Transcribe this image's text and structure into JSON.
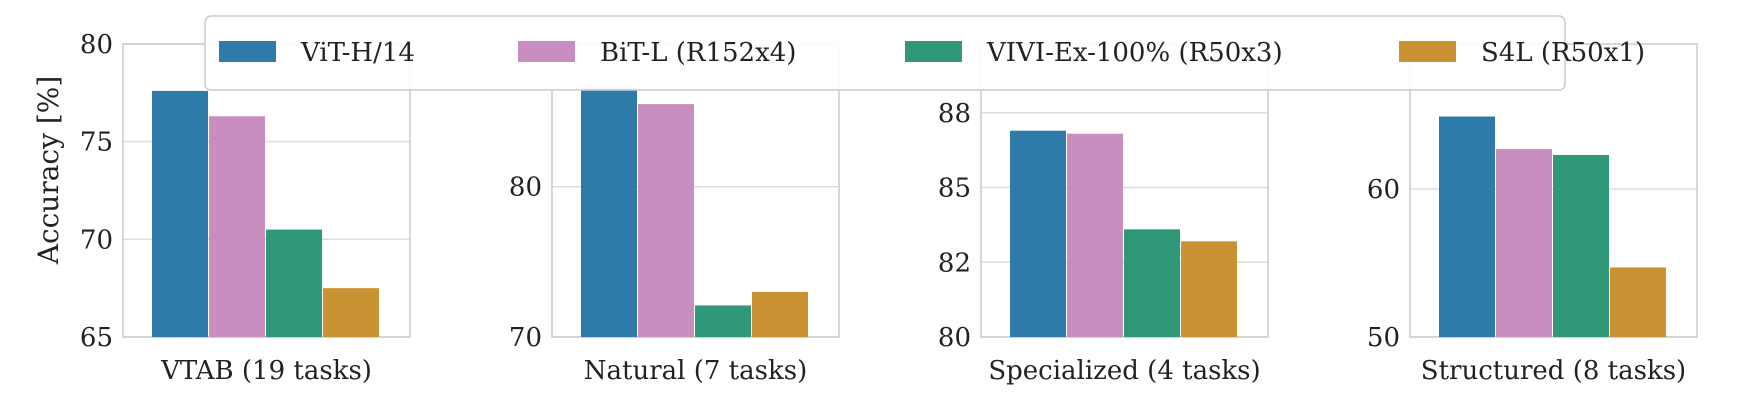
{
  "colors": {
    "ViT-H/14": "#2e7aa8",
    "BiT-L (R152x4)": "#c98ec0",
    "VIVI-Ex-100% (R50x3)": "#2e9879",
    "S4L (R50x1)": "#c99333"
  },
  "legend": {
    "entries": [
      "ViT-H/14",
      "BiT-L (R152x4)",
      "VIVI-Ex-100% (R50x3)",
      "S4L (R50x1)"
    ],
    "placement": "top-center"
  },
  "chart_data": [
    {
      "type": "bar",
      "xlabel": "VTAB (19 tasks)",
      "ylabel": "Accuracy [%]",
      "ylim": [
        65,
        80
      ],
      "yticks": [
        65,
        70,
        75,
        80
      ],
      "ytick_labels": [
        "65",
        "70",
        "75",
        "80"
      ],
      "categories": [
        "ViT-H/14",
        "BiT-L (R152x4)",
        "VIVI-Ex-100% (R50x3)",
        "S4L (R50x1)"
      ],
      "values": [
        77.6,
        76.3,
        70.5,
        67.5
      ],
      "grid": true
    },
    {
      "type": "bar",
      "xlabel": "Natural (7 tasks)",
      "ylabel": "",
      "ylim": [
        70,
        89.5
      ],
      "yticks": [
        70,
        80
      ],
      "ytick_labels": [
        "70",
        "80"
      ],
      "categories": [
        "ViT-H/14",
        "BiT-L (R152x4)",
        "VIVI-Ex-100% (R50x3)",
        "S4L (R50x1)"
      ],
      "values": [
        86.6,
        85.5,
        72.1,
        73.0
      ],
      "grid": true
    },
    {
      "type": "bar",
      "xlabel": "Specialized (4 tasks)",
      "ylabel": "",
      "ylim": [
        80,
        89.8
      ],
      "yticks": [
        80,
        82.5,
        85,
        87.5
      ],
      "ytick_labels": [
        "80",
        "82",
        "85",
        "88"
      ],
      "categories": [
        "ViT-H/14",
        "BiT-L (R152x4)",
        "VIVI-Ex-100% (R50x3)",
        "S4L (R50x1)"
      ],
      "values": [
        86.9,
        86.8,
        83.6,
        83.2
      ],
      "grid": true
    },
    {
      "type": "bar",
      "xlabel": "Structured (8 tasks)",
      "ylabel": "",
      "ylim": [
        50,
        69.8
      ],
      "yticks": [
        50,
        60
      ],
      "ytick_labels": [
        "50",
        "60"
      ],
      "categories": [
        "ViT-H/14",
        "BiT-L (R152x4)",
        "VIVI-Ex-100% (R50x3)",
        "S4L (R50x1)"
      ],
      "values": [
        64.9,
        62.7,
        62.3,
        54.7
      ],
      "grid": true
    }
  ]
}
